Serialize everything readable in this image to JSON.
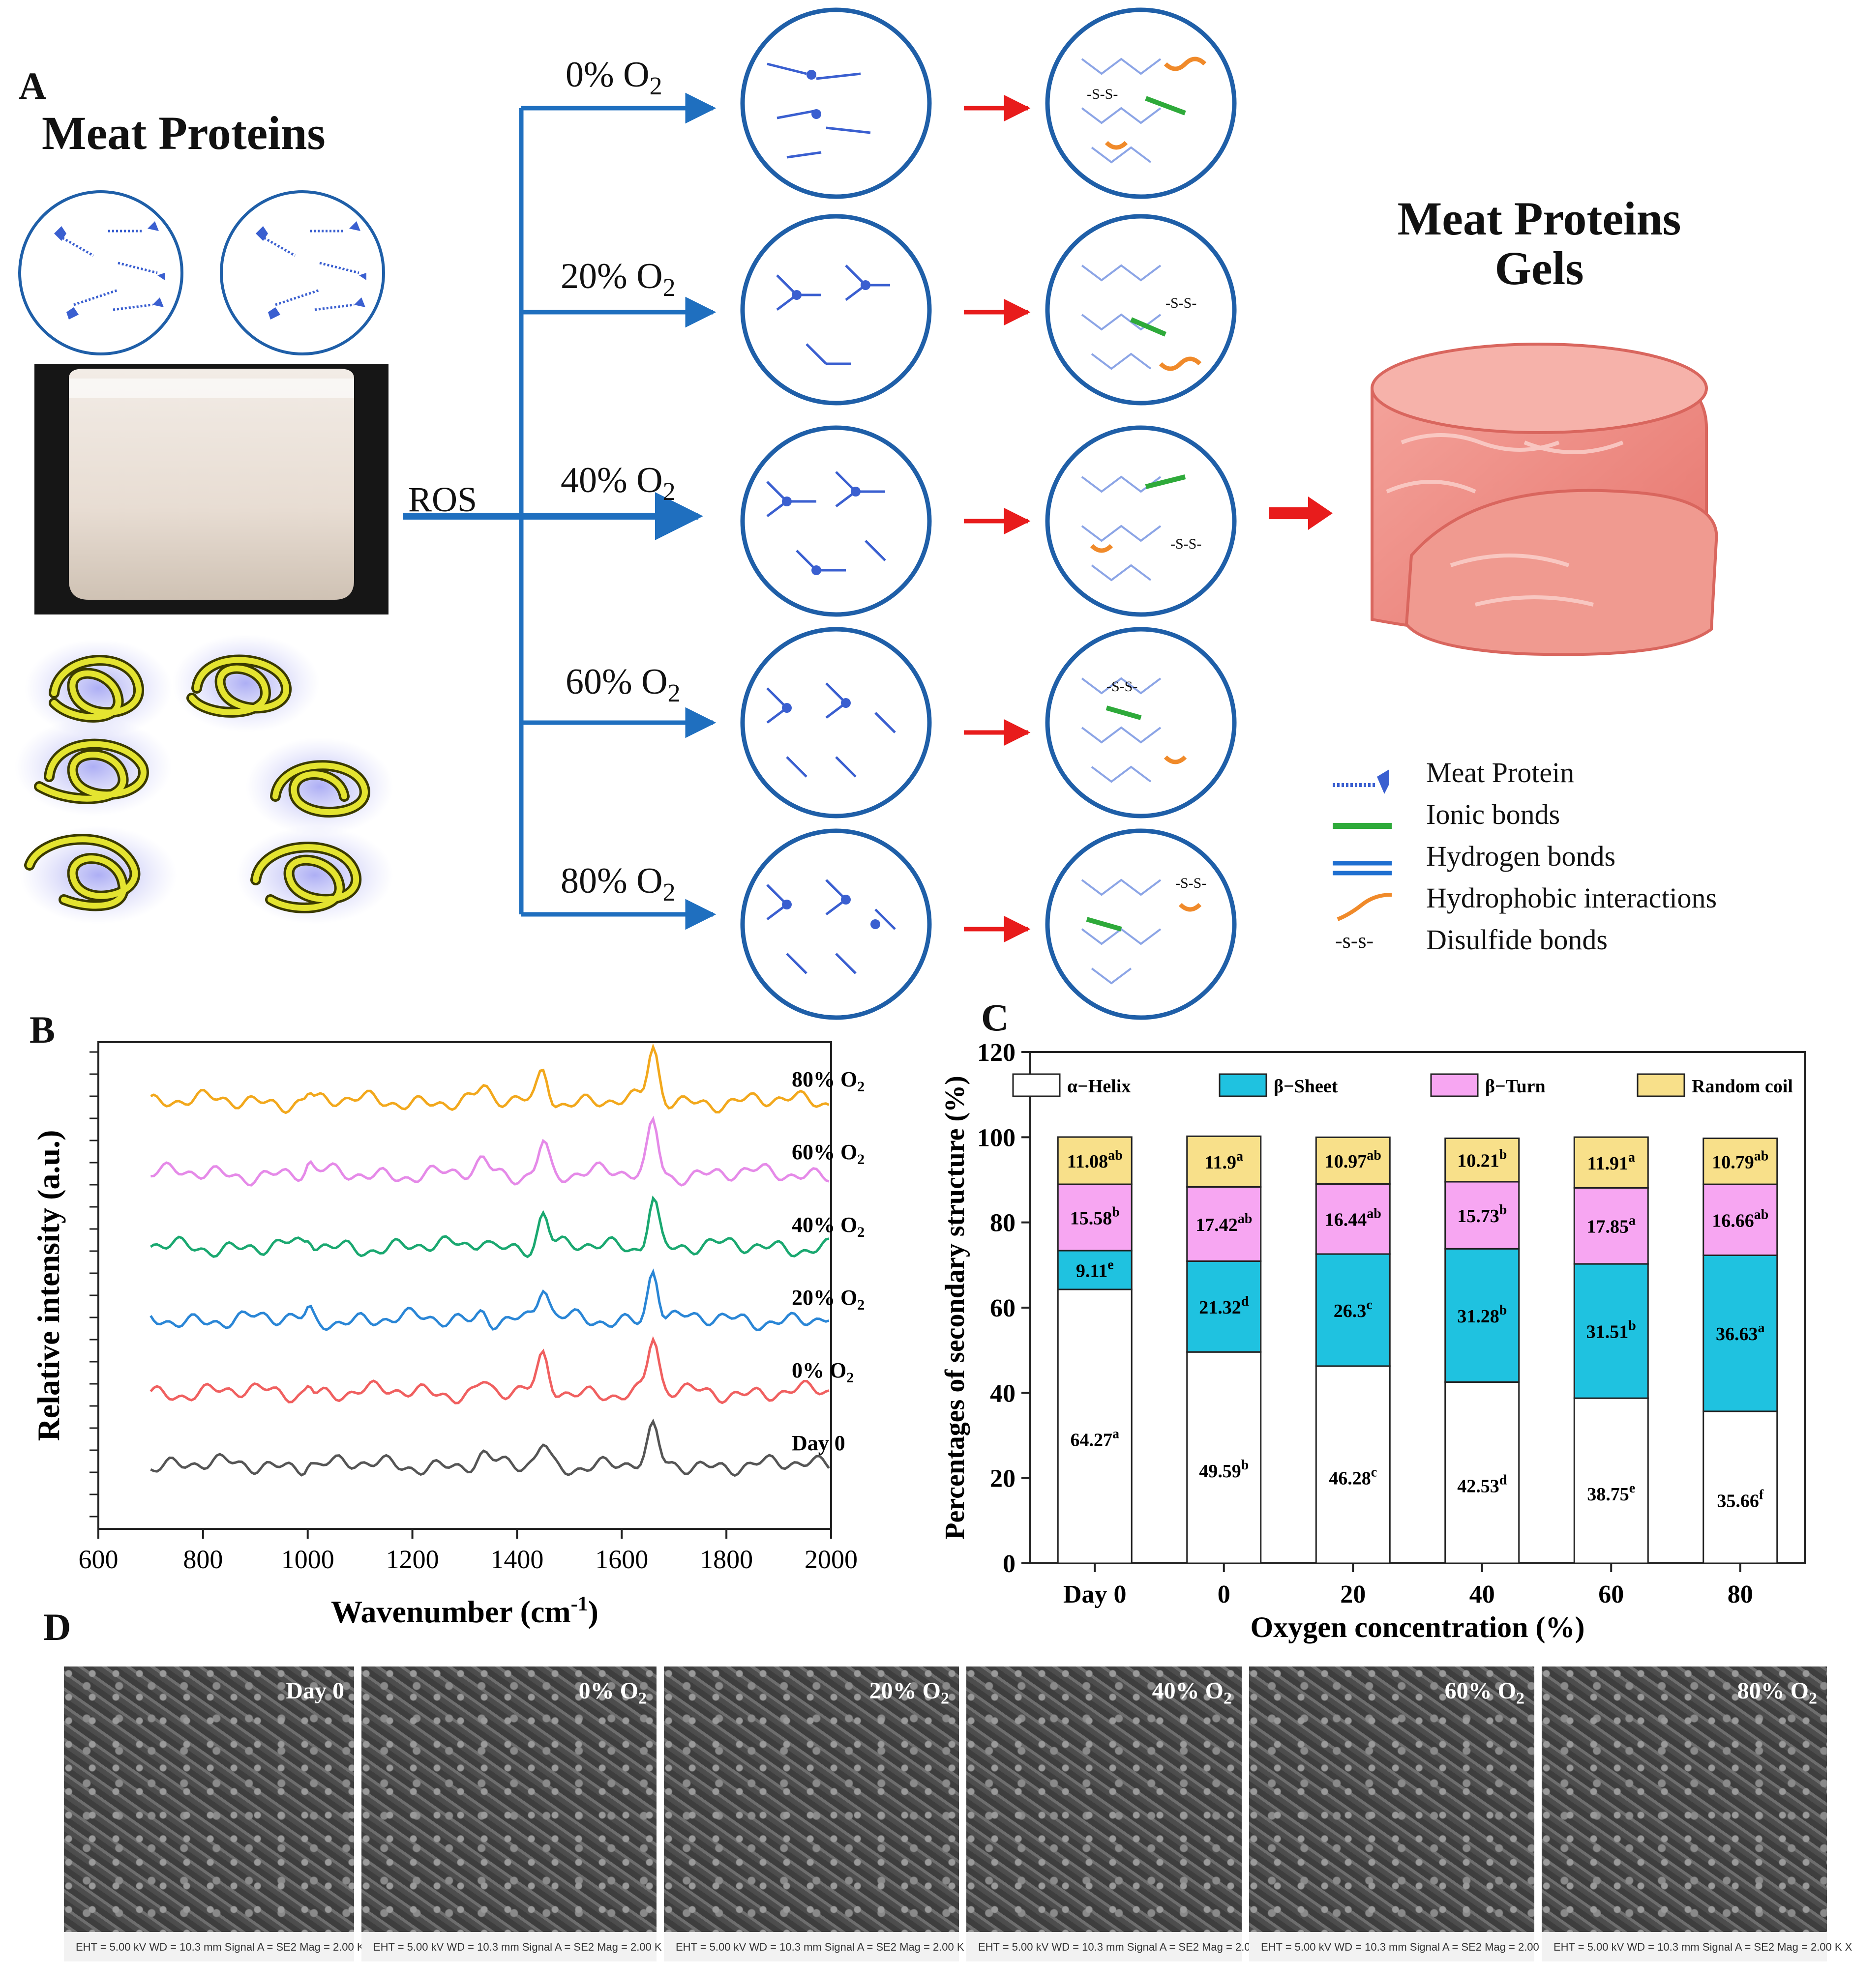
{
  "panelA": {
    "letter": "A",
    "left_title": "Meat Proteins",
    "ros_label": "ROS",
    "conditions": [
      {
        "main": "0% O",
        "sub": "2"
      },
      {
        "main": "20% O",
        "sub": "2"
      },
      {
        "main": "40% O",
        "sub": "2"
      },
      {
        "main": "60% O",
        "sub": "2"
      },
      {
        "main": "80% O",
        "sub": "2"
      }
    ],
    "right_title_line1": "Meat Proteins",
    "right_title_line2": "Gels",
    "legend": [
      {
        "label": "Meat Protein",
        "icon": "protein-icon"
      },
      {
        "label": "Ionic bonds",
        "icon": "green-line-icon",
        "color": "#2eaa3a"
      },
      {
        "label": "Hydrogen bonds",
        "icon": "double-blue-line-icon",
        "color": "#1f6fd0"
      },
      {
        "label": "Hydrophobic interactions",
        "icon": "orange-curve-icon",
        "color": "#f08a2a"
      },
      {
        "label": "Disulfide bonds",
        "icon": "ss-text",
        "symbol": "-s-s-"
      }
    ],
    "disulfide_mark": "-S-S-",
    "colors": {
      "arrow_blue": "#1f6fbf",
      "arrow_red": "#e81c1c",
      "circle_border": "#1f5fa8",
      "protein": "#3a5fd0"
    }
  },
  "panelB": {
    "letter": "B",
    "chart_data": {
      "type": "line",
      "xlabel": "Wavenumber (cm",
      "xlabel_sup": "-1",
      "xlabel_close": ")",
      "ylabel": "Relative intensity (a.u.)",
      "xlim": [
        600,
        2000
      ],
      "x_ticks": [
        "600",
        "800",
        "1000",
        "1200",
        "1400",
        "1600",
        "1800",
        "2000"
      ],
      "x_start": 700,
      "series": [
        {
          "name": "Day 0",
          "name_sub": "",
          "color": "#555555",
          "offset": 0
        },
        {
          "name": "0% O",
          "name_sub": "2",
          "color": "#f06060",
          "offset": 1
        },
        {
          "name": "20% O",
          "name_sub": "2",
          "color": "#2a86d6",
          "offset": 2
        },
        {
          "name": "40% O",
          "name_sub": "2",
          "color": "#1aa870",
          "offset": 3
        },
        {
          "name": "60% O",
          "name_sub": "2",
          "color": "#e58ae8",
          "offset": 4
        },
        {
          "name": "80% O",
          "name_sub": "2",
          "color": "#f2a81c",
          "offset": 5
        }
      ],
      "peaks": [
        1450,
        1660
      ]
    }
  },
  "panelC": {
    "letter": "C",
    "chart_data": {
      "type": "bar",
      "stacked": true,
      "xlabel": "Oxygen concentration (%)",
      "ylabel": "Percentages of secondary structure (%)",
      "ylim": [
        0,
        120
      ],
      "y_ticks": [
        "0",
        "20",
        "40",
        "60",
        "80",
        "100",
        "120"
      ],
      "categories": [
        "Day 0",
        "0",
        "20",
        "40",
        "60",
        "80"
      ],
      "legend_position": "top",
      "series": [
        {
          "name": "α−Helix",
          "color": "#ffffff",
          "values": [
            64.27,
            49.59,
            46.28,
            42.53,
            38.75,
            35.66
          ],
          "letters": [
            "a",
            "b",
            "c",
            "d",
            "e",
            "f"
          ]
        },
        {
          "name": "β−Sheet",
          "color": "#1fc2e0",
          "values": [
            9.11,
            21.32,
            26.3,
            31.28,
            31.51,
            36.63
          ],
          "letters": [
            "e",
            "d",
            "c",
            "b",
            "b",
            "a"
          ]
        },
        {
          "name": "β−Turn",
          "color": "#f7a6f2",
          "values": [
            15.58,
            17.42,
            16.44,
            15.73,
            17.85,
            16.66
          ],
          "letters": [
            "b",
            "ab",
            "ab",
            "b",
            "a",
            "ab"
          ]
        },
        {
          "name": "Random coil",
          "color": "#f8e08a",
          "values": [
            11.08,
            11.9,
            10.97,
            10.21,
            11.91,
            10.79
          ],
          "letters": [
            "ab",
            "a",
            "ab",
            "b",
            "a",
            "ab"
          ]
        }
      ]
    }
  },
  "panelD": {
    "letter": "D",
    "images": [
      {
        "label": "Day 0",
        "sub": ""
      },
      {
        "label": "0% O",
        "sub": "2"
      },
      {
        "label": "20% O",
        "sub": "2"
      },
      {
        "label": "40% O",
        "sub": "2"
      },
      {
        "label": "60% O",
        "sub": "2"
      },
      {
        "label": "80% O",
        "sub": "2"
      }
    ],
    "meta_text": "EHT = 5.00 kV   WD = 10.3 mm   Signal A = SE2   Mag = 2.00 K X"
  }
}
